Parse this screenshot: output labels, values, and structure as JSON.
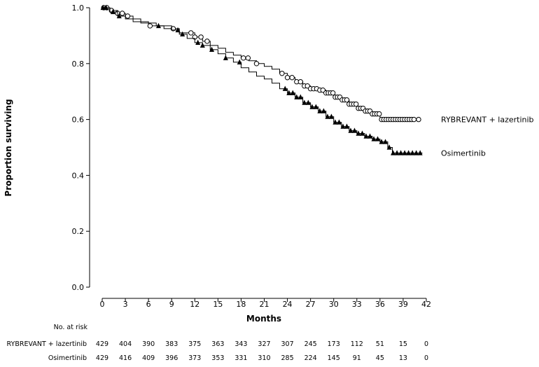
{
  "chart_data": {
    "type": "line",
    "title": "",
    "xlabel": "Months",
    "ylabel": "Proportion surviving",
    "xlim": [
      0,
      42
    ],
    "ylim": [
      0,
      1.0
    ],
    "x_ticks": [
      0,
      3,
      6,
      9,
      12,
      15,
      18,
      21,
      24,
      27,
      30,
      33,
      36,
      39,
      42
    ],
    "y_ticks": [
      0.0,
      0.2,
      0.4,
      0.6,
      0.8,
      1.0
    ],
    "y_tick_labels": [
      "0.0",
      "0.2",
      "0.4",
      "0.6",
      "0.8",
      "1.0"
    ],
    "grid": false,
    "series": [
      {
        "name": "RYBREVANT + lazertinib",
        "marker": "open-circle",
        "color": "#000000",
        "step_points": [
          [
            0,
            1.0
          ],
          [
            1,
            0.99
          ],
          [
            2,
            0.98
          ],
          [
            3,
            0.97
          ],
          [
            4,
            0.95
          ],
          [
            6,
            0.935
          ],
          [
            8,
            0.925
          ],
          [
            10,
            0.91
          ],
          [
            12,
            0.895
          ],
          [
            13,
            0.88
          ],
          [
            14,
            0.865
          ],
          [
            15,
            0.855
          ],
          [
            16,
            0.84
          ],
          [
            17,
            0.83
          ],
          [
            18,
            0.82
          ],
          [
            19,
            0.81
          ],
          [
            20,
            0.8
          ],
          [
            21,
            0.79
          ],
          [
            22,
            0.78
          ],
          [
            23,
            0.765
          ],
          [
            24,
            0.75
          ],
          [
            25,
            0.735
          ],
          [
            26,
            0.72
          ],
          [
            27,
            0.71
          ],
          [
            28,
            0.705
          ],
          [
            29,
            0.695
          ],
          [
            30,
            0.68
          ],
          [
            31,
            0.67
          ],
          [
            32,
            0.655
          ],
          [
            33,
            0.64
          ],
          [
            34,
            0.63
          ],
          [
            35,
            0.62
          ],
          [
            36,
            0.6
          ],
          [
            41,
            0.6
          ]
        ],
        "censor_x": [
          0.2,
          0.6,
          1.2,
          2,
          2.6,
          3.3,
          6.2,
          9.2,
          11.5,
          12,
          12.8,
          13.6,
          18.3,
          18.9,
          20,
          23.3,
          24,
          24.6,
          25.2,
          25.7,
          26.2,
          26.6,
          27,
          27.4,
          27.8,
          28.2,
          28.6,
          29,
          29.3,
          29.6,
          29.9,
          30.2,
          30.5,
          30.8,
          31.1,
          31.4,
          31.7,
          32,
          32.3,
          32.6,
          32.9,
          33.2,
          33.5,
          33.8,
          34.1,
          34.4,
          34.7,
          35,
          35.3,
          35.6,
          35.9,
          36.2,
          36.5,
          36.8,
          37.1,
          37.4,
          37.7,
          38,
          38.3,
          38.6,
          38.9,
          39.2,
          39.5,
          39.8,
          40.1,
          40.4,
          41
        ]
      },
      {
        "name": "Osimertinib",
        "marker": "filled-triangle",
        "color": "#000000",
        "step_points": [
          [
            0,
            1.0
          ],
          [
            1,
            0.985
          ],
          [
            2,
            0.97
          ],
          [
            3,
            0.96
          ],
          [
            5,
            0.945
          ],
          [
            7,
            0.935
          ],
          [
            9,
            0.92
          ],
          [
            10,
            0.905
          ],
          [
            11,
            0.89
          ],
          [
            12,
            0.875
          ],
          [
            13,
            0.865
          ],
          [
            14,
            0.85
          ],
          [
            15,
            0.835
          ],
          [
            16,
            0.82
          ],
          [
            17,
            0.805
          ],
          [
            18,
            0.785
          ],
          [
            19,
            0.77
          ],
          [
            20,
            0.755
          ],
          [
            21,
            0.745
          ],
          [
            22,
            0.73
          ],
          [
            23,
            0.71
          ],
          [
            24,
            0.695
          ],
          [
            25,
            0.68
          ],
          [
            26,
            0.66
          ],
          [
            27,
            0.645
          ],
          [
            28,
            0.63
          ],
          [
            29,
            0.61
          ],
          [
            30,
            0.59
          ],
          [
            31,
            0.575
          ],
          [
            32,
            0.56
          ],
          [
            33,
            0.55
          ],
          [
            34,
            0.54
          ],
          [
            35,
            0.53
          ],
          [
            36,
            0.52
          ],
          [
            37,
            0.5
          ],
          [
            37.6,
            0.48
          ],
          [
            41.5,
            0.48
          ]
        ],
        "censor_x": [
          0.1,
          0.5,
          1.4,
          2.2,
          7.3,
          9.8,
          10.4,
          12.4,
          13,
          14.2,
          16,
          17.8,
          23.7,
          24.2,
          24.7,
          25.2,
          25.7,
          26.2,
          26.7,
          27.2,
          27.7,
          28.2,
          28.7,
          29.2,
          29.7,
          30.2,
          30.7,
          31.2,
          31.7,
          32.2,
          32.7,
          33.2,
          33.7,
          34.2,
          34.7,
          35.2,
          35.7,
          36.2,
          36.7,
          37.2,
          37.7,
          38.2,
          38.7,
          39.2,
          39.7,
          40.2,
          40.7,
          41.2
        ]
      }
    ]
  },
  "risk_table": {
    "title": "No. at risk",
    "rows": [
      {
        "label": "RYBREVANT + lazertinib",
        "values": [
          "429",
          "404",
          "390",
          "383",
          "375",
          "363",
          "343",
          "327",
          "307",
          "245",
          "173",
          "112",
          "51",
          "15",
          "0"
        ]
      },
      {
        "label": "Osimertinib",
        "values": [
          "429",
          "416",
          "409",
          "396",
          "373",
          "353",
          "331",
          "310",
          "285",
          "224",
          "145",
          "91",
          "45",
          "13",
          "0"
        ]
      }
    ]
  }
}
